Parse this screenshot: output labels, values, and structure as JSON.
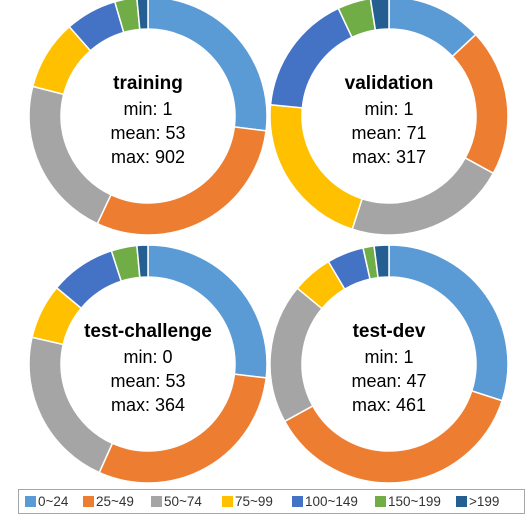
{
  "chart_data": [
    {
      "type": "donut",
      "title": "training",
      "stats": [
        "min: 1",
        "mean: 53",
        "max: 902"
      ],
      "categories": [
        "0~24",
        "25~49",
        "50~74",
        "75~99",
        "100~149",
        "150~199",
        ">199"
      ],
      "values": [
        27.0,
        30.0,
        22.0,
        9.5,
        7.0,
        3.0,
        1.5
      ]
    },
    {
      "type": "donut",
      "title": "validation",
      "stats": [
        "min: 1",
        "mean: 71",
        "max: 317"
      ],
      "categories": [
        "0~24",
        "25~49",
        "50~74",
        "75~99",
        "100~149",
        "150~199",
        ">199"
      ],
      "values": [
        13.0,
        20.0,
        22.0,
        21.5,
        16.5,
        4.5,
        2.5
      ]
    },
    {
      "type": "donut",
      "title": "test-challenge",
      "stats": [
        "min: 0",
        "mean: 53",
        "max: 364"
      ],
      "categories": [
        "0~24",
        "25~49",
        "50~74",
        "75~99",
        "100~149",
        "150~199",
        ">199"
      ],
      "values": [
        27.0,
        30.0,
        22.0,
        7.5,
        9.0,
        3.5,
        1.5
      ]
    },
    {
      "type": "donut",
      "title": "test-dev",
      "stats": [
        "min: 1",
        "mean: 47",
        "max: 461"
      ],
      "categories": [
        "0~24",
        "25~49",
        "50~74",
        "75~99",
        "100~149",
        "150~199",
        ">199"
      ],
      "values": [
        30.0,
        37.0,
        19.0,
        5.5,
        5.0,
        1.5,
        2.0
      ]
    }
  ],
  "legend": {
    "placement": "bottom",
    "entries": [
      {
        "label": "0~24",
        "color": "#5b9bd5"
      },
      {
        "label": "25~49",
        "color": "#ed7d31"
      },
      {
        "label": "50~74",
        "color": "#a5a5a5"
      },
      {
        "label": "75~99",
        "color": "#ffc000"
      },
      {
        "label": "100~149",
        "color": "#4472c4"
      },
      {
        "label": "150~199",
        "color": "#70ad47"
      },
      {
        "label": ">199",
        "color": "#255e91"
      }
    ]
  }
}
